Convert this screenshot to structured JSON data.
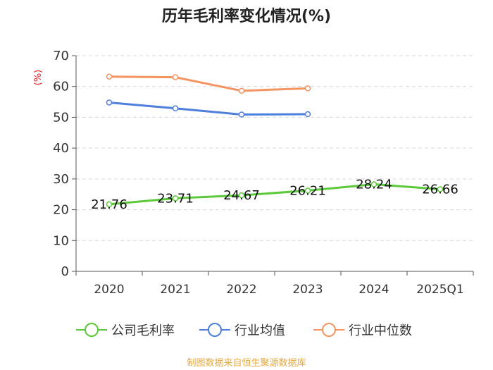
{
  "chart_data": {
    "type": "line",
    "title": "历年毛利率变化情况(%)",
    "ylabel": "(%)",
    "categories": [
      "2020",
      "2021",
      "2022",
      "2023",
      "2024",
      "2025Q1"
    ],
    "ylim": [
      0,
      70
    ],
    "yticks": [
      0,
      10,
      20,
      30,
      40,
      50,
      60,
      70
    ],
    "grid": "horizontal-dashed",
    "legend_position": "bottom",
    "series": [
      {
        "name": "公司毛利率",
        "color": "#5cc93a",
        "values": [
          21.76,
          23.71,
          24.67,
          26.21,
          28.24,
          26.66
        ],
        "labels": [
          "21.76",
          "23.71",
          "24.67",
          "26.21",
          "28.24",
          "26.66"
        ]
      },
      {
        "name": "行业均值",
        "color": "#4f7fdc",
        "values": [
          54.8,
          52.9,
          50.9,
          51.0,
          null,
          null
        ]
      },
      {
        "name": "行业中位数",
        "color": "#f59461",
        "values": [
          63.2,
          63.0,
          58.6,
          59.4,
          null,
          null
        ]
      }
    ]
  },
  "source_note": "制图数据来自恒生聚源数据库"
}
